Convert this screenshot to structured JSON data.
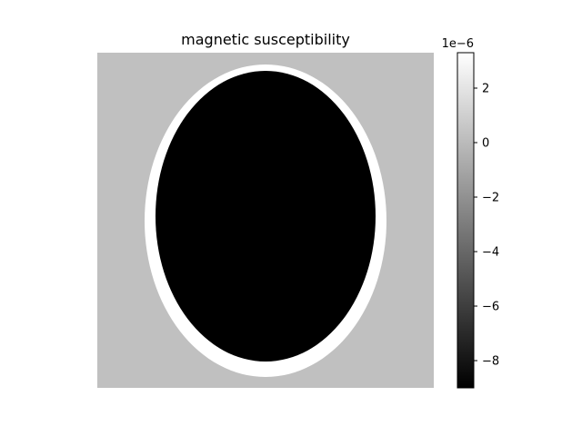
{
  "chart_data": {
    "type": "heatmap",
    "title": "magnetic susceptibility",
    "xlabel": "",
    "ylabel": "",
    "axes_visible": false,
    "colormap": "gray",
    "colorbar": {
      "vmin": -9e-06,
      "vmax": 3.3e-06,
      "scale_label": "1e−6",
      "ticks": [
        {
          "value": 2e-06,
          "label": "2"
        },
        {
          "value": 0,
          "label": "0"
        },
        {
          "value": -2e-06,
          "label": "−2"
        },
        {
          "value": -4e-06,
          "label": "−4"
        },
        {
          "value": -6e-06,
          "label": "−6"
        },
        {
          "value": -8e-06,
          "label": "−8"
        }
      ]
    },
    "regions": [
      {
        "name": "background",
        "value": -3e-07,
        "color": "#c0c0c0"
      },
      {
        "name": "outer shell",
        "value": 3.3e-06,
        "color": "#ffffff"
      },
      {
        "name": "inner ellipse",
        "value": -9e-06,
        "color": "#000000"
      }
    ]
  }
}
